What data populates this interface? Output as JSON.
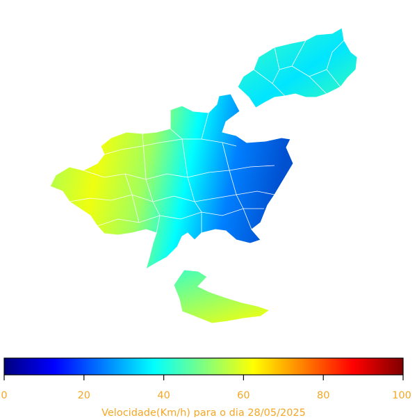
{
  "map": {
    "color_scale": [
      "#00007f",
      "#0000ff",
      "#007fff",
      "#00ffff",
      "#7fff7f",
      "#ffff00",
      "#ff7f00",
      "#ff0000",
      "#7f0000"
    ],
    "border_color": "#ffffff",
    "regions": [
      {
        "id": "north-east",
        "value": 34
      },
      {
        "id": "central-west",
        "value": 52
      },
      {
        "id": "central-north",
        "value": 60
      },
      {
        "id": "central-east",
        "value": 20
      },
      {
        "id": "south-tail",
        "value": 44
      },
      {
        "id": "south-island",
        "value": 52
      }
    ]
  },
  "colorbar": {
    "min": 0,
    "max": 100,
    "ticks": [
      "0",
      "20",
      "40",
      "60",
      "80",
      "100"
    ],
    "label": "Velocidade(Km/h) para o dia 28/05/2025",
    "label_color": "#f5a623"
  }
}
